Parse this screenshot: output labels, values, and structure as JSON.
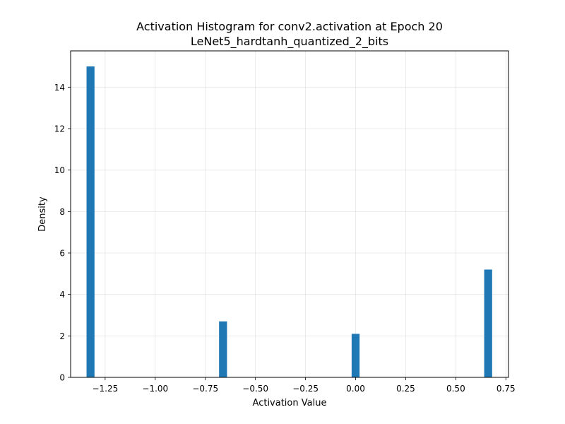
{
  "chart_data": {
    "type": "bar",
    "title": "Activation Histogram for conv2.activation at Epoch 20",
    "subtitle": "LeNet5_hardtanh_quantized_2_bits",
    "xlabel": "Activation Value",
    "ylabel": "Density",
    "xlim": [
      -1.4223,
      0.7631
    ],
    "ylim": [
      0,
      15.75
    ],
    "xticks": [
      -1.25,
      -1.0,
      -0.75,
      -0.5,
      -0.25,
      0.0,
      0.25,
      0.5,
      0.75
    ],
    "xtick_labels": [
      "−1.25",
      "−1.00",
      "−0.75",
      "−0.50",
      "−0.25",
      "0.00",
      "0.25",
      "0.50",
      "0.75"
    ],
    "yticks": [
      0,
      2,
      4,
      6,
      8,
      10,
      12,
      14
    ],
    "ytick_labels": [
      "0",
      "2",
      "4",
      "6",
      "8",
      "10",
      "12",
      "14"
    ],
    "bin_width": 0.0397,
    "bars": [
      {
        "x": -1.323,
        "value": 15.0
      },
      {
        "x": -0.6616,
        "value": 2.7
      },
      {
        "x": 0.0,
        "value": 2.1
      },
      {
        "x": 0.6616,
        "value": 5.2
      }
    ],
    "grid": true,
    "bar_color": "#1f77b4"
  }
}
